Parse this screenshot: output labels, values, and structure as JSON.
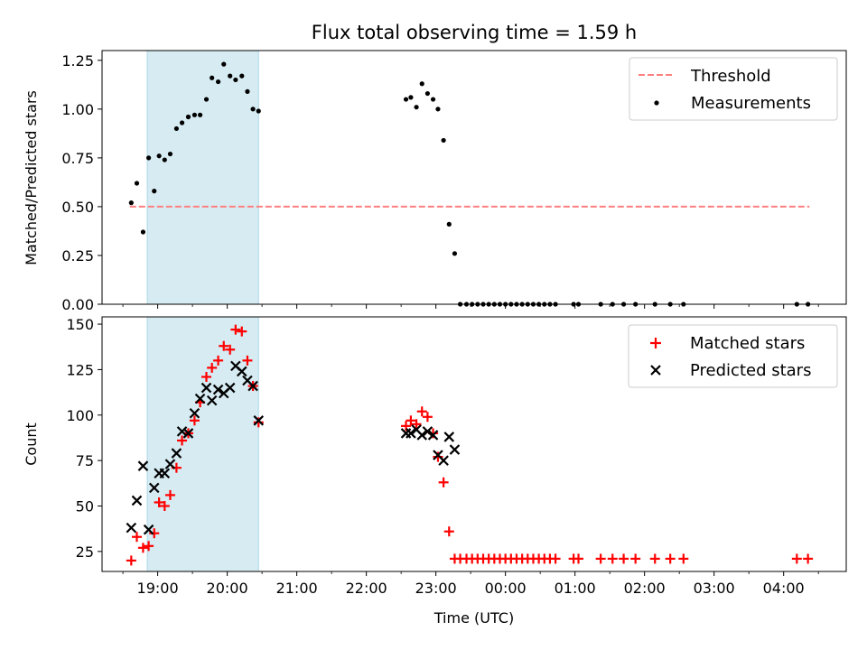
{
  "chart_data": [
    {
      "type": "scatter",
      "title": "Flux total observing time = 1.59 h",
      "xlabel": "",
      "ylabel": "Matched/Predicted stars",
      "xlim": [
        18.2,
        28.9
      ],
      "ylim": [
        0,
        1.3
      ],
      "x_ticks": [
        19,
        20,
        21,
        22,
        23,
        24,
        25,
        26,
        27,
        28
      ],
      "x_tick_labels": [
        "19:00",
        "20:00",
        "21:00",
        "22:00",
        "23:00",
        "00:00",
        "01:00",
        "02:00",
        "03:00",
        "04:00"
      ],
      "y_ticks": [
        0,
        0.25,
        0.5,
        0.75,
        1.0,
        1.25
      ],
      "y_tick_labels": [
        "0.00",
        "0.25",
        "0.50",
        "0.75",
        "1.00",
        "1.25"
      ],
      "shaded_span": {
        "x0": 18.85,
        "x1": 20.45,
        "color": "#add8e6"
      },
      "threshold": {
        "name": "Threshold",
        "y": 0.5,
        "x0": 18.6,
        "x1": 28.37,
        "color": "#ff7f7f",
        "style": "dashed"
      },
      "legend": {
        "position": "top-right",
        "entries": [
          "Threshold",
          "Measurements"
        ]
      },
      "series": [
        {
          "name": "Measurements",
          "color": "#000000",
          "marker": "dot",
          "points": [
            [
              18.62,
              0.52
            ],
            [
              18.7,
              0.62
            ],
            [
              18.79,
              0.37
            ],
            [
              18.87,
              0.75
            ],
            [
              18.95,
              0.58
            ],
            [
              19.02,
              0.76
            ],
            [
              19.1,
              0.74
            ],
            [
              19.18,
              0.77
            ],
            [
              19.27,
              0.9
            ],
            [
              19.35,
              0.93
            ],
            [
              19.44,
              0.96
            ],
            [
              19.53,
              0.97
            ],
            [
              19.61,
              0.97
            ],
            [
              19.7,
              1.05
            ],
            [
              19.78,
              1.16
            ],
            [
              19.87,
              1.14
            ],
            [
              19.95,
              1.23
            ],
            [
              20.04,
              1.17
            ],
            [
              20.12,
              1.15
            ],
            [
              20.21,
              1.17
            ],
            [
              20.29,
              1.09
            ],
            [
              20.37,
              1.0
            ],
            [
              20.45,
              0.99
            ],
            [
              22.57,
              1.05
            ],
            [
              22.64,
              1.06
            ],
            [
              22.72,
              1.01
            ],
            [
              22.8,
              1.13
            ],
            [
              22.88,
              1.08
            ],
            [
              22.96,
              1.05
            ],
            [
              23.03,
              1.0
            ],
            [
              23.11,
              0.84
            ],
            [
              23.19,
              0.41
            ],
            [
              23.27,
              0.26
            ],
            [
              23.35,
              0
            ],
            [
              23.44,
              0
            ],
            [
              23.52,
              0
            ],
            [
              23.6,
              0
            ],
            [
              23.68,
              0
            ],
            [
              23.76,
              0
            ],
            [
              23.84,
              0
            ],
            [
              23.92,
              0
            ],
            [
              24.0,
              0
            ],
            [
              24.08,
              0
            ],
            [
              24.16,
              0
            ],
            [
              24.24,
              0
            ],
            [
              24.32,
              0
            ],
            [
              24.4,
              0
            ],
            [
              24.48,
              0
            ],
            [
              24.56,
              0
            ],
            [
              24.64,
              0
            ],
            [
              24.72,
              0
            ],
            [
              24.98,
              0
            ],
            [
              25.05,
              0
            ],
            [
              25.37,
              0
            ],
            [
              25.54,
              0
            ],
            [
              25.7,
              0
            ],
            [
              25.87,
              0
            ],
            [
              26.15,
              0
            ],
            [
              26.37,
              0
            ],
            [
              26.56,
              0
            ],
            [
              28.19,
              0
            ],
            [
              28.35,
              0
            ]
          ]
        }
      ]
    },
    {
      "type": "scatter",
      "title": "",
      "xlabel": "Time (UTC)",
      "ylabel": "Count",
      "xlim": [
        18.2,
        28.9
      ],
      "ylim": [
        14,
        154
      ],
      "x_ticks": [
        19,
        20,
        21,
        22,
        23,
        24,
        25,
        26,
        27,
        28
      ],
      "x_tick_labels": [
        "19:00",
        "20:00",
        "21:00",
        "22:00",
        "23:00",
        "00:00",
        "01:00",
        "02:00",
        "03:00",
        "04:00"
      ],
      "y_ticks": [
        25,
        50,
        75,
        100,
        125,
        150
      ],
      "y_tick_labels": [
        "25",
        "50",
        "75",
        "100",
        "125",
        "150"
      ],
      "shaded_span": {
        "x0": 18.85,
        "x1": 20.45,
        "color": "#add8e6"
      },
      "legend": {
        "position": "top-right",
        "entries": [
          "Matched stars",
          "Predicted stars"
        ]
      },
      "series": [
        {
          "name": "Matched stars",
          "color": "#ff0000",
          "marker": "plus",
          "points": [
            [
              18.62,
              20
            ],
            [
              18.7,
              33
            ],
            [
              18.79,
              27
            ],
            [
              18.87,
              28
            ],
            [
              18.95,
              35
            ],
            [
              19.02,
              52
            ],
            [
              19.1,
              50
            ],
            [
              19.18,
              56
            ],
            [
              19.27,
              71
            ],
            [
              19.35,
              86
            ],
            [
              19.44,
              90
            ],
            [
              19.53,
              97
            ],
            [
              19.61,
              107
            ],
            [
              19.7,
              121
            ],
            [
              19.78,
              126
            ],
            [
              19.87,
              130
            ],
            [
              19.95,
              138
            ],
            [
              20.04,
              136
            ],
            [
              20.12,
              147
            ],
            [
              20.21,
              146
            ],
            [
              20.29,
              130
            ],
            [
              20.37,
              116
            ],
            [
              20.45,
              96
            ],
            [
              22.57,
              94
            ],
            [
              22.64,
              97
            ],
            [
              22.72,
              95
            ],
            [
              22.8,
              102
            ],
            [
              22.88,
              99
            ],
            [
              22.96,
              90
            ],
            [
              23.03,
              77
            ],
            [
              23.11,
              63
            ],
            [
              23.19,
              36
            ],
            [
              23.27,
              21
            ],
            [
              23.35,
              21
            ],
            [
              23.44,
              21
            ],
            [
              23.52,
              21
            ],
            [
              23.6,
              21
            ],
            [
              23.68,
              21
            ],
            [
              23.76,
              21
            ],
            [
              23.84,
              21
            ],
            [
              23.92,
              21
            ],
            [
              24.0,
              21
            ],
            [
              24.08,
              21
            ],
            [
              24.16,
              21
            ],
            [
              24.24,
              21
            ],
            [
              24.32,
              21
            ],
            [
              24.4,
              21
            ],
            [
              24.48,
              21
            ],
            [
              24.56,
              21
            ],
            [
              24.64,
              21
            ],
            [
              24.72,
              21
            ],
            [
              24.98,
              21
            ],
            [
              25.05,
              21
            ],
            [
              25.37,
              21
            ],
            [
              25.54,
              21
            ],
            [
              25.7,
              21
            ],
            [
              25.87,
              21
            ],
            [
              26.15,
              21
            ],
            [
              26.37,
              21
            ],
            [
              26.56,
              21
            ],
            [
              28.19,
              21
            ],
            [
              28.35,
              21
            ]
          ]
        },
        {
          "name": "Predicted stars",
          "color": "#000000",
          "marker": "x",
          "points": [
            [
              18.62,
              38
            ],
            [
              18.7,
              53
            ],
            [
              18.79,
              72
            ],
            [
              18.87,
              37
            ],
            [
              18.95,
              60
            ],
            [
              19.02,
              68
            ],
            [
              19.1,
              68
            ],
            [
              19.18,
              73
            ],
            [
              19.27,
              79
            ],
            [
              19.35,
              91
            ],
            [
              19.44,
              90
            ],
            [
              19.53,
              101
            ],
            [
              19.61,
              109
            ],
            [
              19.7,
              115
            ],
            [
              19.78,
              108
            ],
            [
              19.87,
              114
            ],
            [
              19.95,
              112
            ],
            [
              20.04,
              115
            ],
            [
              20.12,
              127
            ],
            [
              20.21,
              124
            ],
            [
              20.29,
              119
            ],
            [
              20.37,
              116
            ],
            [
              20.45,
              97
            ],
            [
              22.57,
              90
            ],
            [
              22.64,
              90
            ],
            [
              22.72,
              92
            ],
            [
              22.8,
              89
            ],
            [
              22.88,
              91
            ],
            [
              22.96,
              89
            ],
            [
              23.03,
              78
            ],
            [
              23.11,
              75
            ],
            [
              23.19,
              88
            ],
            [
              23.27,
              81
            ]
          ]
        }
      ]
    }
  ]
}
